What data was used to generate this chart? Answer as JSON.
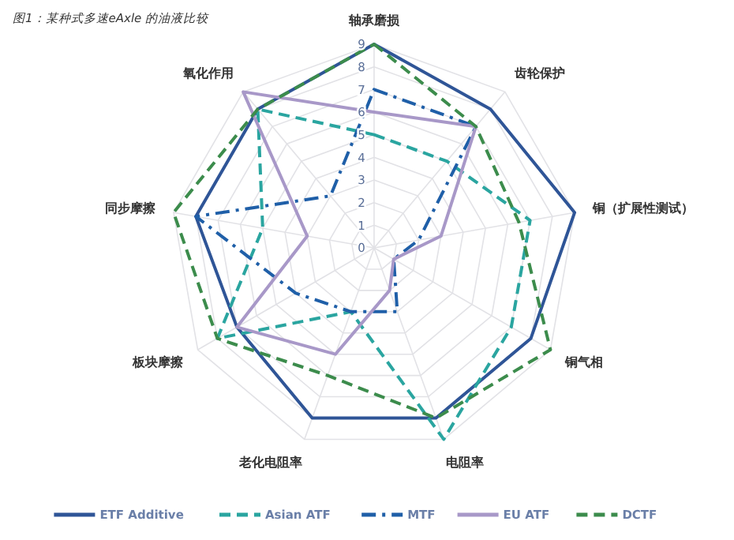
{
  "chart_data": {
    "type": "radar",
    "title": "图1：某种式多速eAxle 的油液比较",
    "categories": [
      "轴承磨损",
      "齿轮保护",
      "铜（扩展性测试）",
      "铜气相",
      "电阻率",
      "老化电阻率",
      "板块摩擦",
      "同步摩擦",
      "氧化作用"
    ],
    "ylim": [
      0,
      9
    ],
    "yticks": [
      0,
      1,
      2,
      3,
      4,
      5,
      6,
      7,
      8,
      9
    ],
    "grid": true,
    "legend": "bottom",
    "marker": "none",
    "series": [
      {
        "name": "ETF Additive",
        "color": "#2f5597",
        "line_style": "solid",
        "values": [
          9,
          8,
          9,
          8,
          8,
          8,
          7,
          8,
          8
        ]
      },
      {
        "name": "Asian ATF",
        "color": "#2aa5a0",
        "line_style": "dashed",
        "values": [
          5,
          5,
          7,
          7,
          9,
          3,
          8,
          5,
          8
        ]
      },
      {
        "name": "MTF",
        "color": "#1f5fa8",
        "line_style": "dashdot",
        "values": [
          7,
          7,
          2,
          1,
          3,
          3,
          4,
          8,
          3
        ]
      },
      {
        "name": "EU ATF",
        "color": "#a898c8",
        "line_style": "solid",
        "values": [
          6,
          7,
          3,
          1,
          2,
          5,
          7,
          3,
          9
        ]
      },
      {
        "name": "DCTF",
        "color": "#3c8c4c",
        "line_style": "dashed",
        "values": [
          9,
          7,
          6.5,
          9,
          8,
          6,
          8,
          9,
          8
        ]
      }
    ]
  }
}
